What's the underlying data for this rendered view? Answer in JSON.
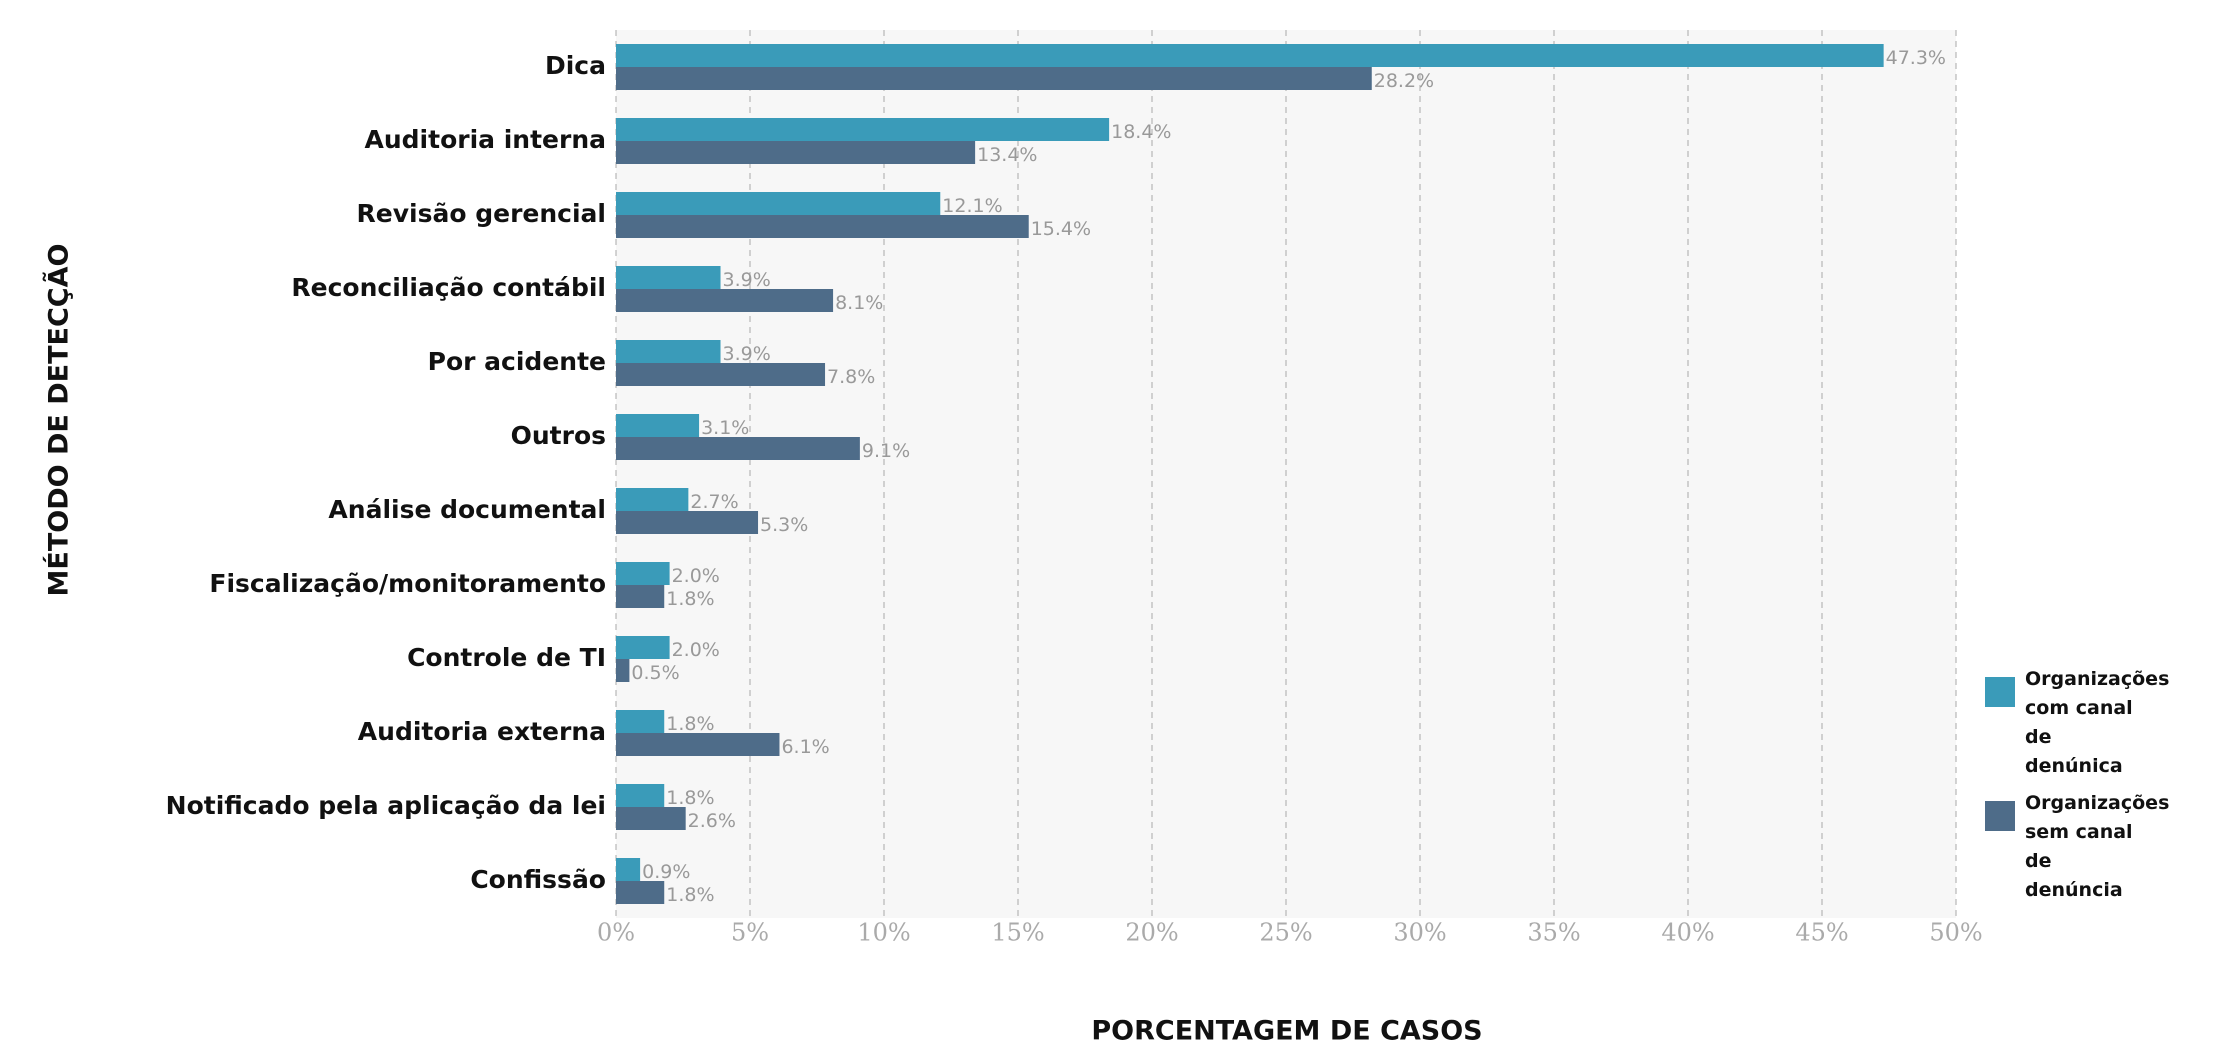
{
  "chart_data": {
    "type": "bar",
    "orientation": "horizontal",
    "xlabel": "PORCENTAGEM DE CASOS",
    "ylabel": "MÉTODO DE DETECÇÃO",
    "categories": [
      "Dica",
      "Auditoria interna",
      "Revisão gerencial",
      "Reconciliação contábil",
      "Por acidente",
      "Outros",
      "Análise documental",
      "Fiscalização/monitoramento",
      "Controle de TI",
      "Auditoria externa",
      "Notificado pela aplicação da lei",
      "Confissão"
    ],
    "series": [
      {
        "name": "Organizações com canal de denúnica",
        "color": "#3a9bb9",
        "values": [
          47.3,
          18.4,
          12.1,
          3.9,
          3.9,
          3.1,
          2.7,
          2.0,
          2.0,
          1.8,
          1.8,
          0.9
        ],
        "value_labels": [
          "47.3%",
          "18.4%",
          "12.1%",
          "3.9%",
          "3.9%",
          "3.1%",
          "2.7%",
          "2.0%",
          "2.0%",
          "1.8%",
          "1.8%",
          "0.9%"
        ]
      },
      {
        "name": "Organizações sem canal de denúncia",
        "color": "#4e6c89",
        "values": [
          28.2,
          13.4,
          15.4,
          8.1,
          7.8,
          9.1,
          5.3,
          1.8,
          0.5,
          6.1,
          2.6,
          1.8
        ],
        "value_labels": [
          "28.2%",
          "13.4%",
          "15.4%",
          "8.1%",
          "7.8%",
          "9.1%",
          "5.3%",
          "1.8%",
          "0.5%",
          "6.1%",
          "2.6%",
          "1.8%"
        ]
      }
    ],
    "xlim": [
      0,
      50
    ],
    "xticks": [
      {
        "value": 0,
        "label": "0%"
      },
      {
        "value": 5,
        "label": "5%"
      },
      {
        "value": 10,
        "label": "10%"
      },
      {
        "value": 15,
        "label": "15%"
      },
      {
        "value": 20,
        "label": "20%"
      },
      {
        "value": 25,
        "label": "25%"
      },
      {
        "value": 30,
        "label": "30%"
      },
      {
        "value": 35,
        "label": "35%"
      },
      {
        "value": 40,
        "label": "40%"
      },
      {
        "value": 45,
        "label": "45%"
      },
      {
        "value": 50,
        "label": "50%"
      }
    ],
    "grid": true,
    "legend": "right"
  }
}
